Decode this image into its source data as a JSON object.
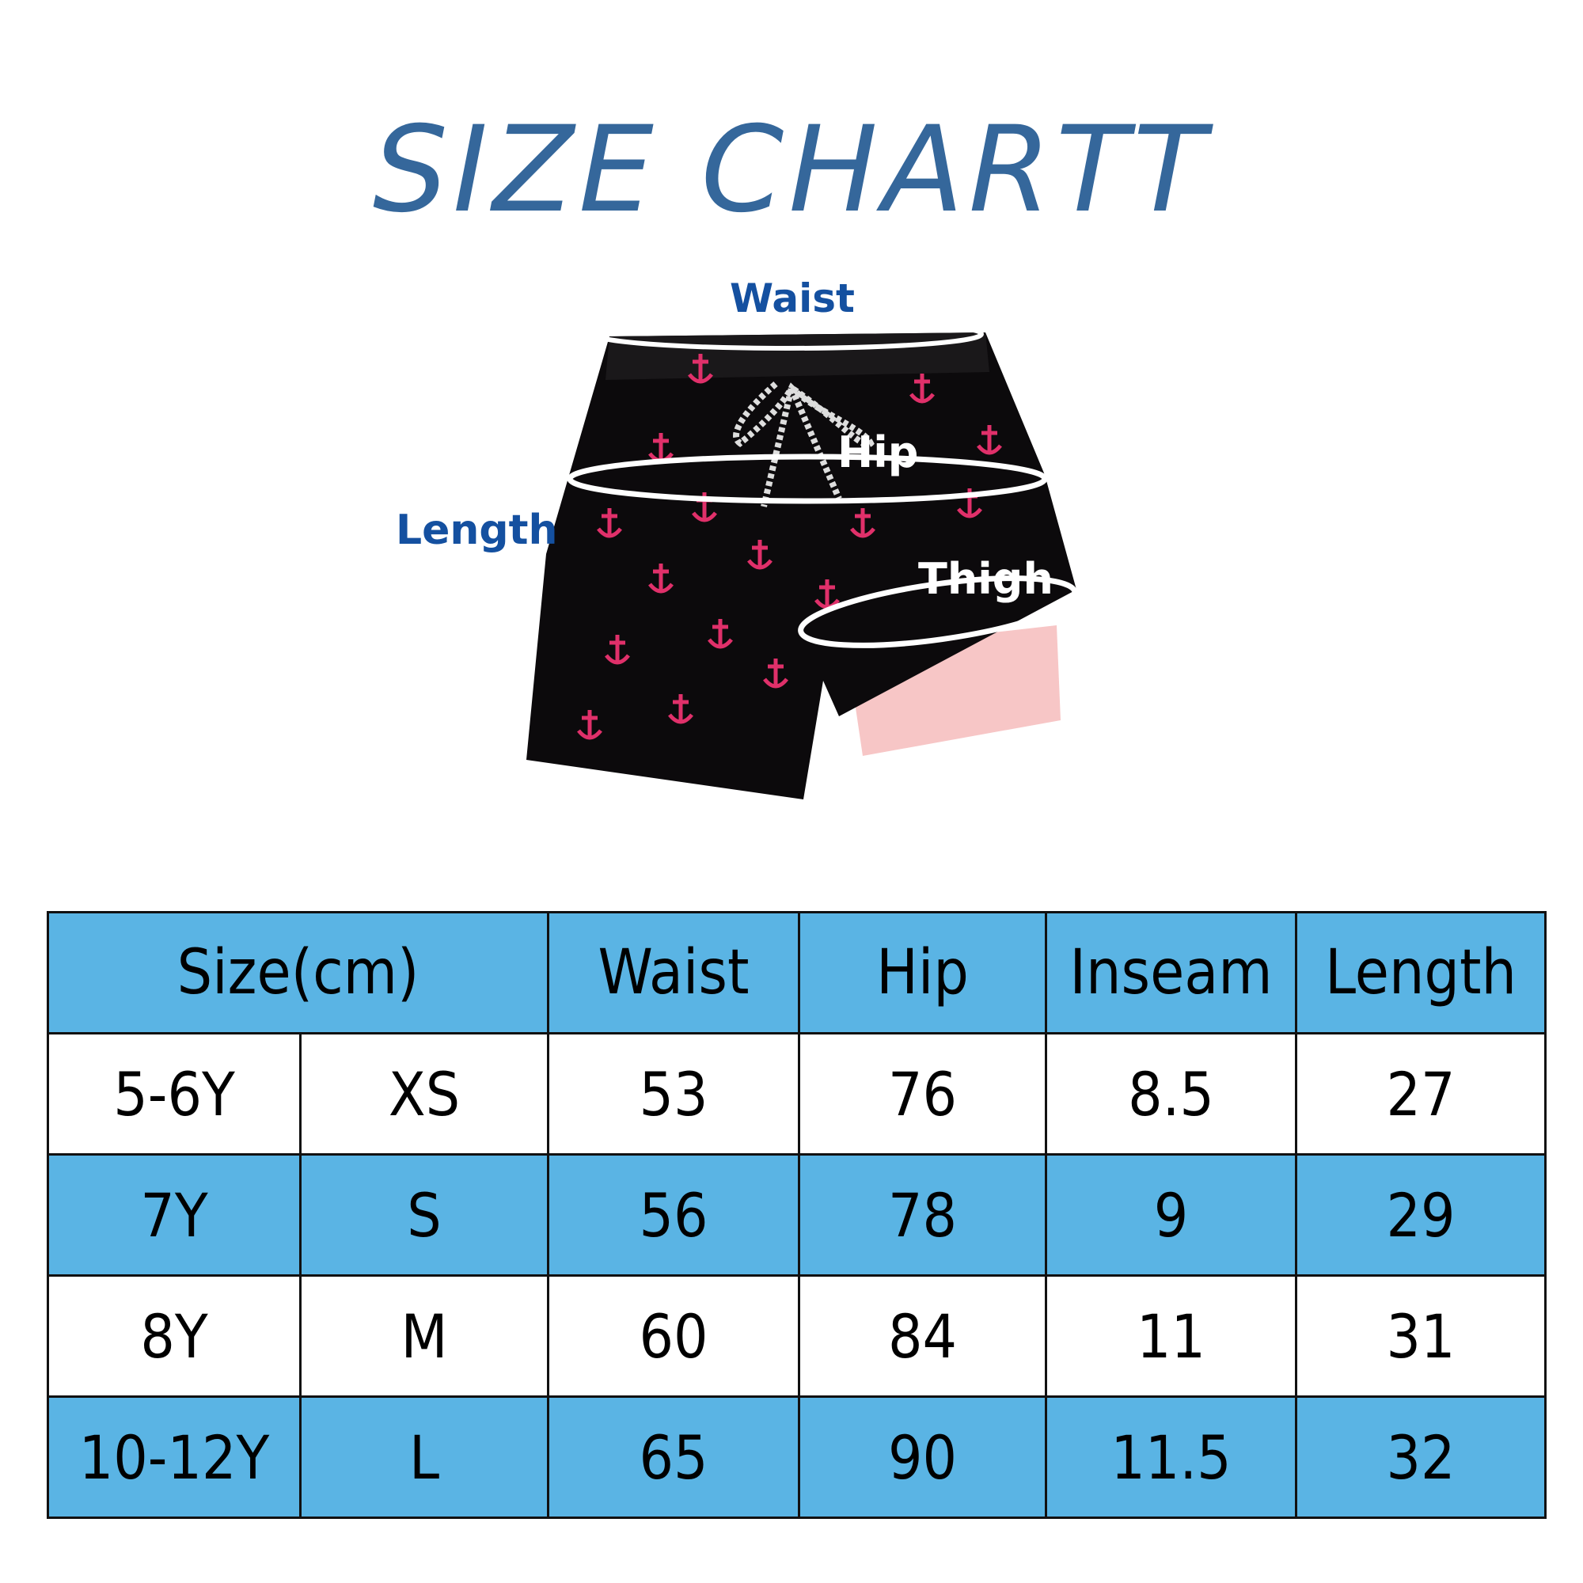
{
  "title": "SIZE CHARTT",
  "figure": {
    "labels": {
      "waist": "Waist",
      "hip": "Hip",
      "length": "Length",
      "thigh": "Thigh"
    }
  },
  "colors": {
    "title": "#35679b",
    "label": "#1450a0",
    "table_blue": "#5ab4e4",
    "shorts": "#0c0a0c",
    "liner": "#f7c6c6",
    "anchor": "#e0306a"
  },
  "table": {
    "headers": [
      "Size(cm)",
      "Waist",
      "Hip",
      "Inseam",
      "Length"
    ],
    "rows": [
      [
        "5-6Y",
        "XS",
        "53",
        "76",
        "8.5",
        "27"
      ],
      [
        "7Y",
        "S",
        "56",
        "78",
        "9",
        "29"
      ],
      [
        "8Y",
        "M",
        "60",
        "84",
        "11",
        "31"
      ],
      [
        "10-12Y",
        "L",
        "65",
        "90",
        "11.5",
        "32"
      ]
    ]
  }
}
